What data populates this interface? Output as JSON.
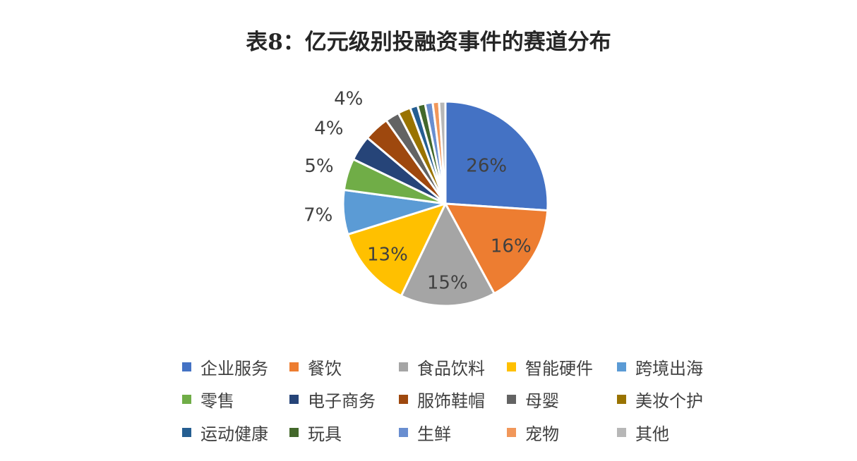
{
  "chart_data": {
    "type": "pie",
    "title": "表8：亿元级别投融资事件的赛道分布",
    "slices": [
      {
        "name": "企业服务",
        "value": 26,
        "label": "26%",
        "color": "#4472C4"
      },
      {
        "name": "餐饮",
        "value": 16,
        "label": "16%",
        "color": "#ED7D31"
      },
      {
        "name": "食品饮料",
        "value": 15,
        "label": "15%",
        "color": "#A5A5A5"
      },
      {
        "name": "智能硬件",
        "value": 13,
        "label": "13%",
        "color": "#FFC000"
      },
      {
        "name": "跨境出海",
        "value": 7,
        "label": "7%",
        "color": "#5B9BD5"
      },
      {
        "name": "零售",
        "value": 5,
        "label": "5%",
        "color": "#70AD47"
      },
      {
        "name": "电子商务",
        "value": 4,
        "label": "4%",
        "color": "#264478"
      },
      {
        "name": "服饰鞋帽",
        "value": 4,
        "label": "4%",
        "color": "#9E480E"
      },
      {
        "name": "母婴",
        "value": 2.2,
        "label": "",
        "color": "#636363"
      },
      {
        "name": "美妆个护",
        "value": 2,
        "label": "",
        "color": "#997300"
      },
      {
        "name": "运动健康",
        "value": 1.2,
        "label": "",
        "color": "#255E91"
      },
      {
        "name": "玩具",
        "value": 1.2,
        "label": "",
        "color": "#43682B"
      },
      {
        "name": "生鲜",
        "value": 1.2,
        "label": "",
        "color": "#698ED0"
      },
      {
        "name": "宠物",
        "value": 1,
        "label": "",
        "color": "#F1975A"
      },
      {
        "name": "其他",
        "value": 1,
        "label": "",
        "color": "#B7B7B7"
      }
    ],
    "legend_position": "bottom"
  }
}
